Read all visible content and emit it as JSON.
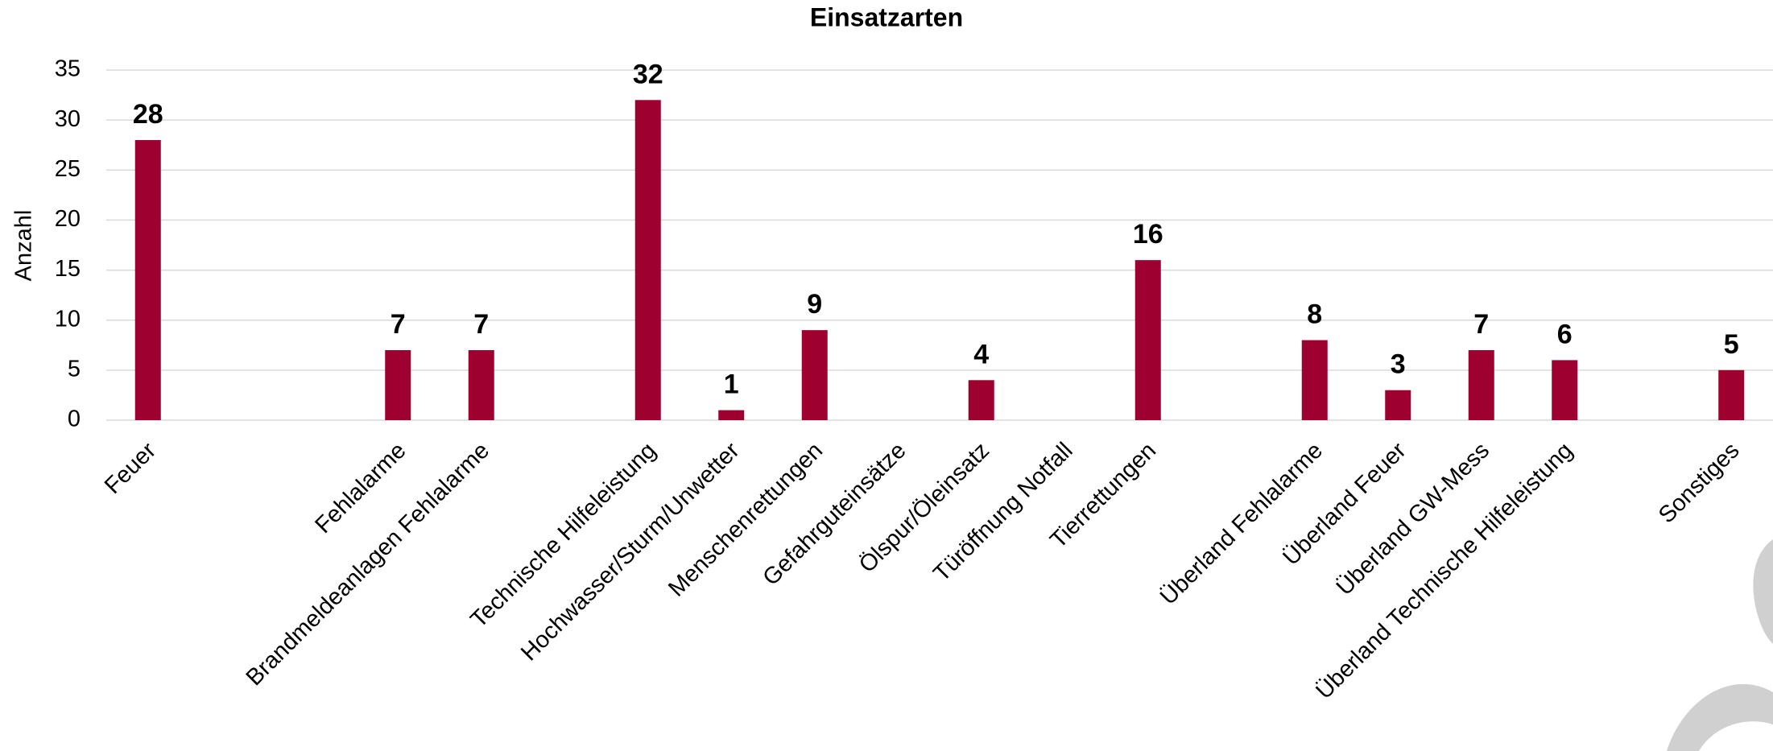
{
  "chart_data": {
    "type": "bar",
    "title": "Einsatzarten",
    "y_label": "Anzahl",
    "categories": [
      "Feuer",
      null,
      null,
      "Fehlalarme",
      "Brandmeldeanlagen Fehlalarme",
      null,
      "Technische Hilfeleistung",
      "Hochwasser/Sturm/Unwetter",
      "Menschenrettungen",
      "Gefahrguteinsätze",
      "Ölspur/Öleinsatz",
      "Türöffnung Notfall",
      "Tierrettungen",
      null,
      "Überland Fehlalarme",
      "Überland Feuer",
      "Überland GW-Mess",
      "Überland Technische Hilfeleistung",
      null,
      "Sonstiges"
    ],
    "values": [
      28,
      null,
      null,
      7,
      7,
      null,
      32,
      1,
      9,
      null,
      4,
      null,
      16,
      null,
      8,
      3,
      7,
      6,
      null,
      5
    ],
    "color": "#9e0030",
    "ylim": [
      0,
      35
    ],
    "yticks": [
      0,
      5,
      10,
      15,
      20,
      25,
      30,
      35
    ],
    "grid": true
  }
}
